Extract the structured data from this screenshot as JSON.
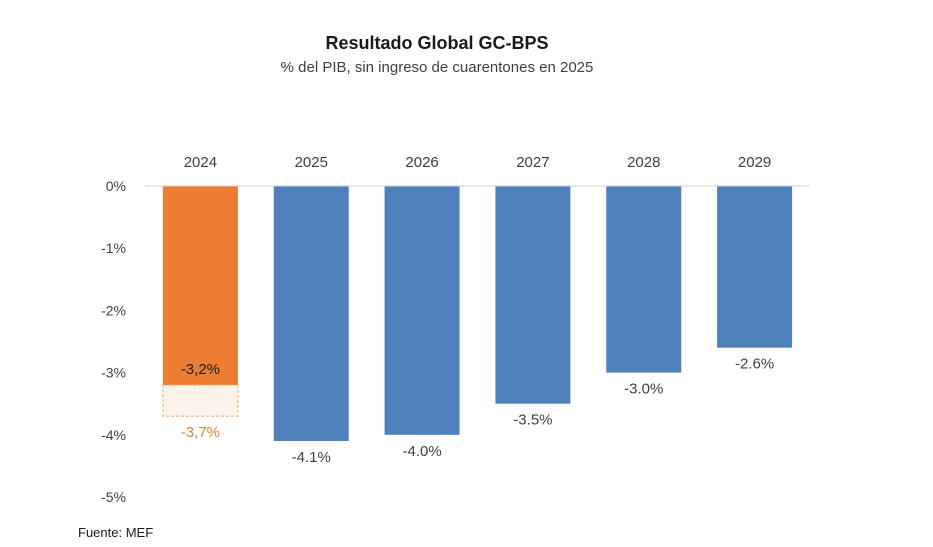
{
  "chart_data": {
    "type": "bar",
    "title": "Resultado Global GC-BPS",
    "subtitle": "% del PIB, sin ingreso de cuarentones en 2025",
    "categories": [
      "2024",
      "2025",
      "2026",
      "2027",
      "2028",
      "2029"
    ],
    "series": [
      {
        "values": [
          -3.2,
          -4.1,
          -4.0,
          -3.5,
          -3.0,
          -2.6
        ],
        "labels": [
          "-3,2%",
          "-4.1%",
          "-4.0%",
          "-3.5%",
          "-3.0%",
          "-2.6%"
        ],
        "colors": [
          "#ED7D31",
          "#4F81BD",
          "#4F81BD",
          "#4F81BD",
          "#4F81BD",
          "#4F81BD"
        ]
      },
      {
        "values": [
          -3.7,
          null,
          null,
          null,
          null,
          null
        ],
        "labels": [
          "-3,7%",
          "",
          "",
          "",
          "",
          ""
        ],
        "style": "dashed-outline",
        "color": "#F4A460",
        "label_color": "#ED7D31"
      }
    ],
    "y_ticks": [
      0,
      -1,
      -2,
      -3,
      -4,
      -5
    ],
    "y_tick_labels": [
      "0%",
      "-1%",
      "-2%",
      "-3%",
      "-4%",
      "-5%"
    ],
    "ylim": [
      -5,
      0
    ],
    "grid": false,
    "xlabel": "",
    "ylabel": ""
  },
  "source": "Fuente: MEF",
  "colors": {
    "primary_bar": "#4F81BD",
    "highlight_bar": "#ED7D31",
    "dashed_outline": "#F4A460",
    "dashed_fill": "#FDF3EA"
  }
}
